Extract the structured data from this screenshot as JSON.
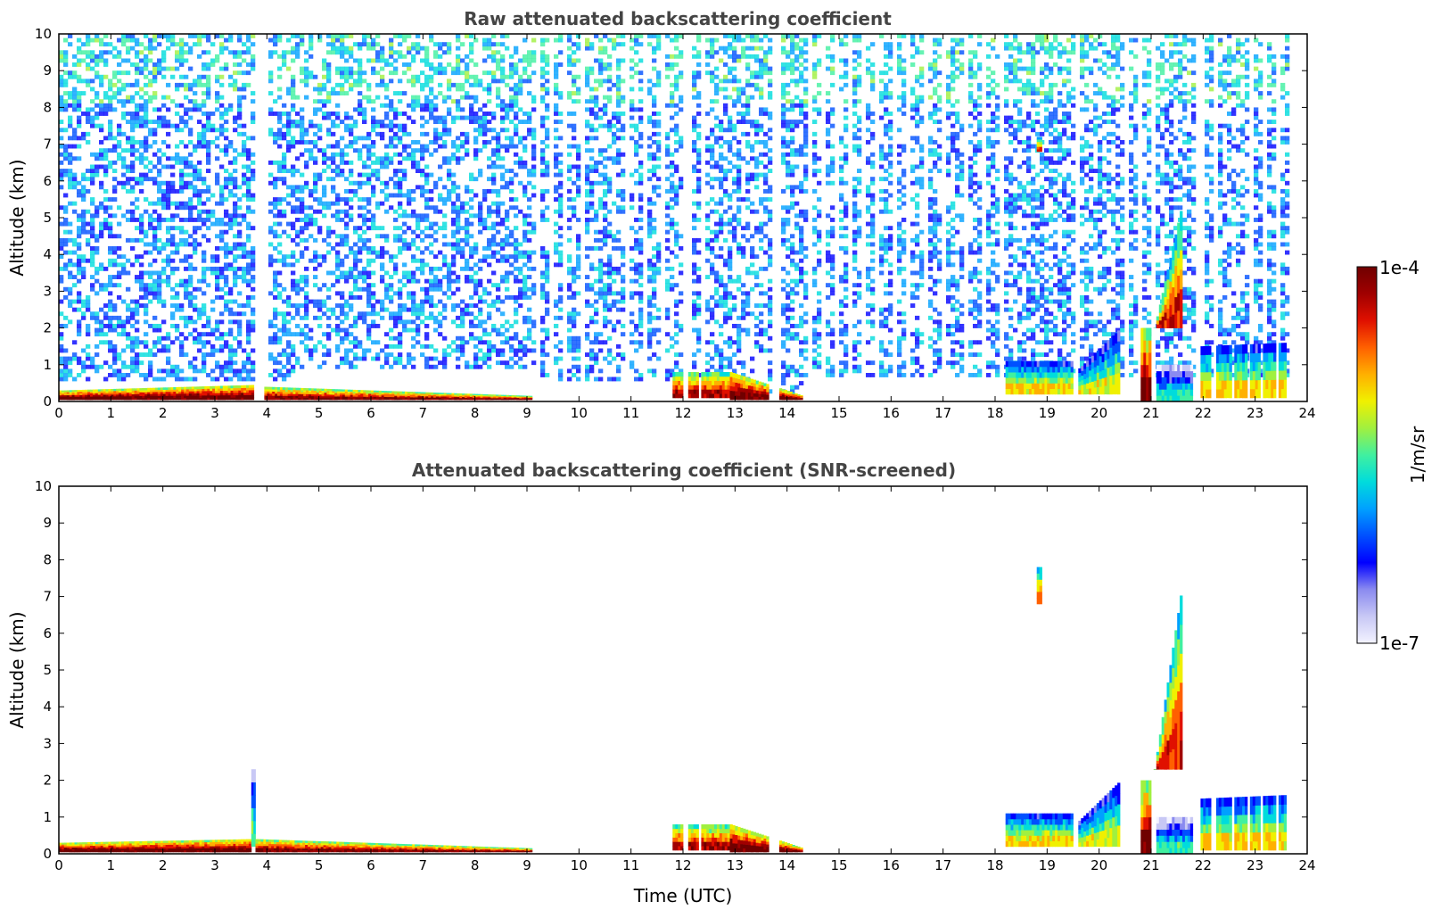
{
  "colors": {
    "colormap": [
      "#f3f3ff",
      "#c8c8f5",
      "#8a8af0",
      "#0000ff",
      "#0050ff",
      "#00a0ff",
      "#00dcdc",
      "#40f0a0",
      "#a0f040",
      "#f0f000",
      "#ffb000",
      "#ff6000",
      "#e01000",
      "#a00000",
      "#700000"
    ],
    "frame": "#000000",
    "title_text": "#444444"
  },
  "colorbar": {
    "label": "1/m/sr",
    "max_label": "1e-4",
    "min_label": "1e-7"
  },
  "chart_data": [
    {
      "type": "heatmap",
      "title": "Raw attenuated backscattering coefficient",
      "xlabel": "",
      "ylabel": "Altitude (km)",
      "xlim": [
        0,
        24
      ],
      "ylim": [
        0,
        10
      ],
      "xticks": [
        "0",
        "1",
        "2",
        "3",
        "4",
        "5",
        "6",
        "7",
        "8",
        "9",
        "10",
        "11",
        "12",
        "13",
        "14",
        "15",
        "16",
        "17",
        "18",
        "19",
        "20",
        "21",
        "22",
        "23",
        "24"
      ],
      "yticks": [
        "0",
        "1",
        "2",
        "3",
        "4",
        "5",
        "6",
        "7",
        "8",
        "9",
        "10"
      ],
      "colorscale": "log",
      "crange": [
        "1e-7",
        "1e-4"
      ],
      "screened": false,
      "data_gaps_utc": [
        [
          3.75,
          3.95
        ],
        [
          9.1,
          9.25
        ],
        [
          9.4,
          9.5
        ],
        [
          9.65,
          9.75
        ],
        [
          9.95,
          10.05
        ],
        [
          10.3,
          10.35
        ],
        [
          10.55,
          10.62
        ],
        [
          10.85,
          10.93
        ],
        [
          11.2,
          11.3
        ],
        [
          11.55,
          11.65
        ],
        [
          12.0,
          12.1
        ],
        [
          12.3,
          12.35
        ],
        [
          13.65,
          13.85
        ],
        [
          14.35,
          14.45
        ],
        [
          14.6,
          14.7
        ],
        [
          14.85,
          14.95
        ],
        [
          15.15,
          15.25
        ],
        [
          15.4,
          15.45
        ],
        [
          15.65,
          15.75
        ],
        [
          15.95,
          16.05
        ],
        [
          16.25,
          16.35
        ],
        [
          16.55,
          16.65
        ],
        [
          16.9,
          17.0
        ],
        [
          17.4,
          17.45
        ],
        [
          17.7,
          17.8
        ],
        [
          18.05,
          18.15
        ],
        [
          19.5,
          19.55
        ],
        [
          20.45,
          20.55
        ],
        [
          20.7,
          20.8
        ],
        [
          21.0,
          21.05
        ],
        [
          21.85,
          21.95
        ],
        [
          22.15,
          22.25
        ],
        [
          22.55,
          22.6
        ],
        [
          22.85,
          22.9
        ],
        [
          23.1,
          23.15
        ],
        [
          23.4,
          23.45
        ],
        [
          23.65,
          24.0
        ]
      ],
      "noise_fade_alt_km": [
        [
          0,
          4.5,
          0.45
        ],
        [
          4.5,
          9.1,
          0.85
        ],
        [
          9.1,
          13.0,
          0.45
        ],
        [
          13.0,
          14.3,
          0.15
        ],
        [
          14.3,
          23.6,
          0.6
        ]
      ],
      "cloud_features": [
        {
          "t": [
            0,
            3.75
          ],
          "base": 0.05,
          "top_start": 0.3,
          "top_end": 0.45,
          "level": 0.9
        },
        {
          "t": [
            3.95,
            9.1
          ],
          "base": 0.05,
          "top_start": 0.4,
          "top_end": 0.15,
          "level": 0.85
        },
        {
          "t": [
            11.8,
            12.9
          ],
          "base": 0.1,
          "top_start": 0.8,
          "top_end": 0.8,
          "level": 0.8
        },
        {
          "t": [
            12.9,
            14.3
          ],
          "base": 0.05,
          "top_start": 0.8,
          "top_end": 0.15,
          "level": 0.9
        },
        {
          "t": [
            18.2,
            19.5
          ],
          "base": 0.2,
          "top_start": 1.1,
          "top_end": 1.1,
          "level": 0.55
        },
        {
          "t": [
            19.6,
            20.4
          ],
          "base": 0.2,
          "top_start": 0.9,
          "top_end": 2.0,
          "level": 0.5
        },
        {
          "t": [
            20.8,
            21.0
          ],
          "base": 0.0,
          "top_start": 2.0,
          "top_end": 2.0,
          "level": 0.85
        },
        {
          "t": [
            21.05,
            21.6
          ],
          "base": 2.0,
          "top_start": 2.0,
          "top_end": 5.5,
          "level": 0.75
        },
        {
          "t": [
            21.1,
            21.8
          ],
          "base": 0.0,
          "top_start": 1.0,
          "top_end": 1.0,
          "level": 0.35
        },
        {
          "t": [
            21.9,
            23.6
          ],
          "base": 0.1,
          "top_start": 1.5,
          "top_end": 1.6,
          "level": 0.55
        },
        {
          "t": [
            18.8,
            18.9
          ],
          "base": 6.8,
          "top_start": 7.2,
          "top_end": 7.2,
          "level": 0.7
        }
      ]
    },
    {
      "type": "heatmap",
      "title": "Attenuated backscattering coefficient (SNR-screened)",
      "xlabel": "Time (UTC)",
      "ylabel": "Altitude (km)",
      "xlim": [
        0,
        24
      ],
      "ylim": [
        0,
        10
      ],
      "xticks": [
        "0",
        "1",
        "2",
        "3",
        "4",
        "5",
        "6",
        "7",
        "8",
        "9",
        "10",
        "11",
        "12",
        "13",
        "14",
        "15",
        "16",
        "17",
        "18",
        "19",
        "20",
        "21",
        "22",
        "23",
        "24"
      ],
      "yticks": [
        "0",
        "1",
        "2",
        "3",
        "4",
        "5",
        "6",
        "7",
        "8",
        "9",
        "10"
      ],
      "colorscale": "log",
      "crange": [
        "1e-7",
        "1e-4"
      ],
      "screened": true,
      "data_gaps_utc": [
        [
          9.1,
          9.25
        ],
        [
          9.4,
          9.5
        ],
        [
          9.65,
          9.75
        ],
        [
          9.95,
          10.05
        ],
        [
          10.3,
          10.35
        ],
        [
          10.55,
          10.62
        ],
        [
          10.85,
          10.93
        ],
        [
          11.2,
          11.3
        ],
        [
          11.55,
          11.65
        ],
        [
          12.0,
          12.1
        ],
        [
          12.3,
          12.35
        ],
        [
          13.65,
          13.85
        ],
        [
          14.35,
          14.45
        ],
        [
          14.6,
          14.7
        ],
        [
          14.85,
          14.95
        ],
        [
          15.15,
          15.25
        ],
        [
          15.4,
          15.45
        ],
        [
          15.65,
          15.75
        ],
        [
          15.95,
          16.05
        ],
        [
          16.25,
          16.35
        ],
        [
          16.55,
          16.65
        ],
        [
          16.9,
          17.0
        ],
        [
          17.4,
          17.45
        ],
        [
          17.7,
          17.8
        ],
        [
          18.05,
          18.15
        ],
        [
          19.5,
          19.55
        ],
        [
          20.45,
          20.55
        ],
        [
          20.7,
          20.8
        ],
        [
          21.0,
          21.05
        ],
        [
          21.85,
          21.95
        ],
        [
          22.15,
          22.25
        ],
        [
          22.55,
          22.6
        ],
        [
          22.85,
          22.9
        ],
        [
          23.1,
          23.15
        ],
        [
          23.4,
          23.45
        ],
        [
          23.65,
          24.0
        ]
      ],
      "cloud_features": [
        {
          "t": [
            0,
            3.7
          ],
          "base": 0.05,
          "top_start": 0.3,
          "top_end": 0.4,
          "level": 0.9
        },
        {
          "t": [
            3.7,
            3.78
          ],
          "base": 0.2,
          "top_start": 2.3,
          "top_end": 2.3,
          "level": 0.4
        },
        {
          "t": [
            3.78,
            9.1
          ],
          "base": 0.05,
          "top_start": 0.4,
          "top_end": 0.15,
          "level": 0.85
        },
        {
          "t": [
            11.8,
            12.9
          ],
          "base": 0.1,
          "top_start": 0.8,
          "top_end": 0.8,
          "level": 0.8
        },
        {
          "t": [
            12.9,
            14.3
          ],
          "base": 0.05,
          "top_start": 0.8,
          "top_end": 0.15,
          "level": 0.9
        },
        {
          "t": [
            18.2,
            19.5
          ],
          "base": 0.2,
          "top_start": 1.1,
          "top_end": 1.1,
          "level": 0.55
        },
        {
          "t": [
            19.6,
            20.4
          ],
          "base": 0.2,
          "top_start": 0.9,
          "top_end": 2.0,
          "level": 0.5
        },
        {
          "t": [
            20.8,
            21.0
          ],
          "base": 0.0,
          "top_start": 2.0,
          "top_end": 2.0,
          "level": 0.85
        },
        {
          "t": [
            21.05,
            21.6
          ],
          "base": 2.3,
          "top_start": 2.3,
          "top_end": 7.5,
          "level": 0.75
        },
        {
          "t": [
            21.1,
            21.8
          ],
          "base": 0.0,
          "top_start": 1.0,
          "top_end": 1.0,
          "level": 0.35
        },
        {
          "t": [
            21.9,
            23.6
          ],
          "base": 0.1,
          "top_start": 1.5,
          "top_end": 1.6,
          "level": 0.55
        },
        {
          "t": [
            18.8,
            18.9
          ],
          "base": 6.8,
          "top_start": 7.8,
          "top_end": 7.8,
          "level": 0.7
        }
      ]
    }
  ]
}
